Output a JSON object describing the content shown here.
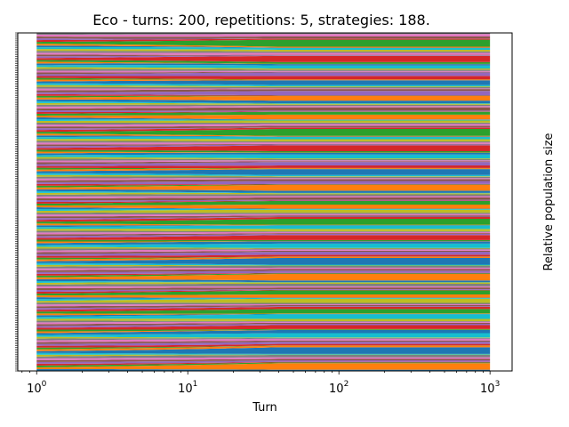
{
  "chart_data": {
    "type": "area",
    "stacked": true,
    "title": "Eco - turns: 200, repetitions: 5, strategies: 188.",
    "xlabel": "Turn",
    "ylabel": "Relative population size",
    "xscale": "log",
    "xlim": [
      0.75,
      1400
    ],
    "ylim": [
      0,
      1
    ],
    "x_ticks": [
      {
        "value": 1,
        "base": "10",
        "exp": "0"
      },
      {
        "value": 10,
        "base": "10",
        "exp": "1"
      },
      {
        "value": 100,
        "base": "10",
        "exp": "2"
      },
      {
        "value": 1000,
        "base": "10",
        "exp": "3"
      }
    ],
    "x_range": [
      1,
      1000
    ],
    "series_count": 188,
    "series_colors": [
      "#1f77b4",
      "#ff7f0e",
      "#2ca02c",
      "#d62728",
      "#9467bd",
      "#8c564b",
      "#e377c2",
      "#7f7f7f",
      "#bcbd22",
      "#17becf"
    ],
    "grid": false,
    "legend": "none"
  }
}
